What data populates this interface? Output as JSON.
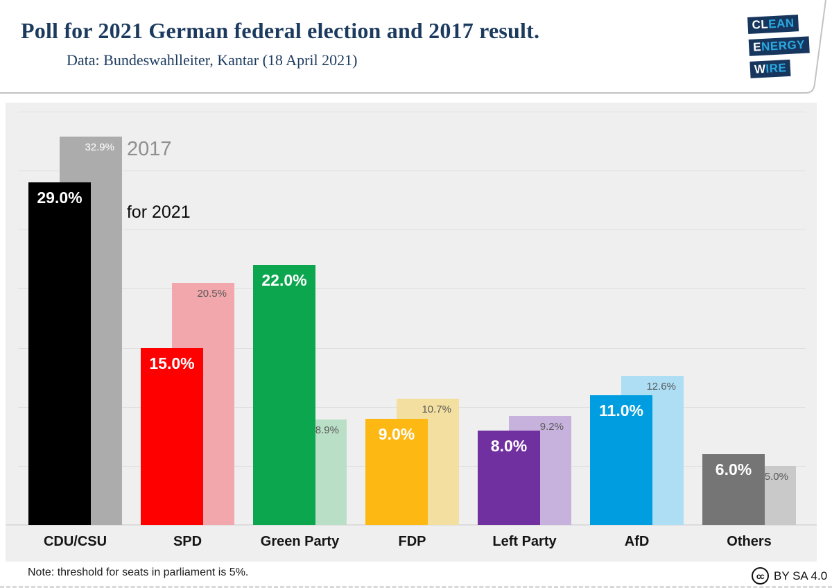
{
  "header": {
    "title": "Poll for 2021 German federal election and 2017 result.",
    "subtitle": "Data: Bundeswahlleiter, Kantar (18 April 2021)",
    "logo": {
      "rows": [
        {
          "strong": "CL",
          "accent": "EAN"
        },
        {
          "strong": "E",
          "accent": "NERGY"
        },
        {
          "strong": "W",
          "accent": "IRE"
        }
      ],
      "navy": "#17365d",
      "cyan": "#2aa9e1"
    }
  },
  "chart_data": {
    "type": "bar",
    "title": "Poll for 2021 German federal election and 2017 result.",
    "categories": [
      "CDU/CSU",
      "SPD",
      "Green Party",
      "FDP",
      "Left Party",
      "AfD",
      "Others"
    ],
    "series": [
      {
        "name": "poll for 2021",
        "values": [
          29.0,
          15.0,
          22.0,
          9.0,
          8.0,
          11.0,
          6.0
        ],
        "labels": [
          "29.0%",
          "15.0%",
          "22.0%",
          "9.0%",
          "8.0%",
          "11.0%",
          "6.0%"
        ],
        "colors": [
          "#000000",
          "#fe0000",
          "#0ca64e",
          "#fdb813",
          "#7030a0",
          "#009ee0",
          "#757575"
        ],
        "label_colors": [
          "#ffffff",
          "#ffffff",
          "#ffffff",
          "#ffffff",
          "#ffffff",
          "#ffffff",
          "#ffffff"
        ]
      },
      {
        "name": "2017",
        "values": [
          32.9,
          20.5,
          8.9,
          10.7,
          9.2,
          12.6,
          5.0
        ],
        "labels": [
          "32.9%",
          "20.5%",
          "8.9%",
          "10.7%",
          "9.2%",
          "12.6%",
          "5.0%"
        ],
        "colors": [
          "#acacac",
          "#f2a7ac",
          "#b9dfc6",
          "#f3df9f",
          "#c7b2dd",
          "#addef4",
          "#c9c9c9"
        ],
        "label_colors": [
          "#ffffff",
          "#595959",
          "#595959",
          "#595959",
          "#595959",
          "#595959",
          "#595959"
        ]
      }
    ],
    "ylabel": "",
    "xlabel": "",
    "ylim": [
      0,
      35
    ],
    "gridline_step": 5,
    "grid": true,
    "legend_position": "inline-annotations",
    "plot_background": "#efefef",
    "gridline_color": "#dedede"
  },
  "note": "Note: threshold for seats in parliament is 5%.",
  "license": {
    "icon": "cc",
    "text": "BY SA 4.0"
  }
}
